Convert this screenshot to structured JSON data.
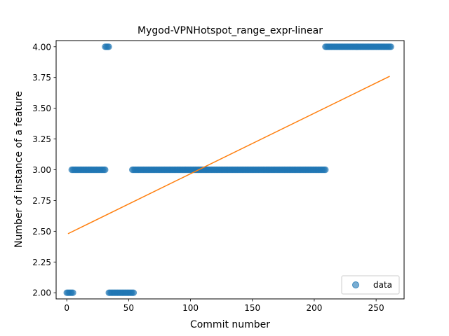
{
  "chart_data": {
    "type": "scatter",
    "title": "Mygod-VPNHotspot_range_expr-linear",
    "xlabel": "Commit number",
    "ylabel": "Number of instance of a feature",
    "xlim": [
      -8.6,
      272.6
    ],
    "ylim": [
      1.95,
      4.05
    ],
    "xticks": [
      0,
      50,
      100,
      150,
      200,
      250
    ],
    "xtick_labels": [
      "0",
      "50",
      "100",
      "150",
      "200",
      "250"
    ],
    "yticks": [
      2.0,
      2.25,
      2.5,
      2.75,
      3.0,
      3.25,
      3.5,
      3.75,
      4.0
    ],
    "ytick_labels": [
      "2.00",
      "2.25",
      "2.50",
      "2.75",
      "3.00",
      "3.25",
      "3.50",
      "3.75",
      "4.00"
    ],
    "grid": false,
    "legend": {
      "position": "lower right",
      "entries": [
        "data"
      ]
    },
    "colors": {
      "points": "#1f77b4",
      "fit": "#ff7f0e"
    },
    "series": [
      {
        "name": "data",
        "kind": "points",
        "segments": [
          {
            "x_from": 0,
            "x_to": 5,
            "y": 2.0
          },
          {
            "x_from": 4,
            "x_to": 31,
            "y": 3.0
          },
          {
            "x_from": 31,
            "x_to": 34,
            "y": 4.0
          },
          {
            "x_from": 34,
            "x_to": 54,
            "y": 2.0
          },
          {
            "x_from": 53,
            "x_to": 209,
            "y": 3.0
          },
          {
            "x_from": 209,
            "x_to": 262,
            "y": 4.0
          }
        ]
      },
      {
        "kind": "line",
        "x": [
          1,
          261
        ],
        "y": [
          2.48,
          3.76
        ]
      }
    ]
  }
}
